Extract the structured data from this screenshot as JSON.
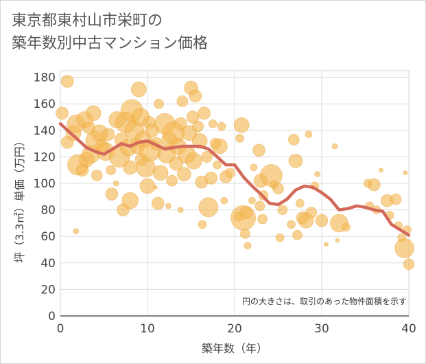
{
  "title_lines": [
    "東京都東村山市栄町の",
    "築年数別中古マンション価格"
  ],
  "chart_data": {
    "type": "scatter",
    "title": "東京都東村山市栄町の築年数別中古マンション価格",
    "xlabel": "築年数（年）",
    "ylabel": "坪（3.3㎡）単価（万円）",
    "xlim": [
      0,
      40
    ],
    "ylim": [
      0,
      185
    ],
    "xticks": [
      0,
      10,
      20,
      30,
      40
    ],
    "yticks": [
      0,
      20,
      40,
      60,
      80,
      100,
      120,
      140,
      160,
      180
    ],
    "grid": true,
    "annotation": "円の大きさは、取引のあった物件面積を示す",
    "colors": {
      "bubble": "#f3b650",
      "line": "#d2695a",
      "grid": "#dcdcdc"
    },
    "trend_line": {
      "x": [
        0,
        1,
        2,
        3,
        4,
        5,
        6,
        7,
        8,
        9,
        10,
        11,
        12,
        13,
        14,
        15,
        16,
        17,
        18,
        19,
        20,
        21,
        22,
        23,
        24,
        25,
        26,
        27,
        28,
        29,
        30,
        31,
        32,
        33,
        34,
        35,
        36,
        37,
        38,
        39,
        40
      ],
      "y": [
        145,
        139,
        133,
        127,
        124,
        122,
        126,
        130,
        128,
        131,
        132,
        129,
        126,
        127,
        128,
        128,
        128,
        126,
        120,
        114,
        114,
        105,
        98,
        92,
        85,
        84,
        88,
        95,
        98,
        97,
        93,
        88,
        80,
        81,
        83,
        82,
        80,
        79,
        69,
        65,
        61
      ]
    },
    "bubbles": [
      {
        "x": 0.2,
        "y": 153,
        "s": 9
      },
      {
        "x": 0.8,
        "y": 177,
        "s": 9
      },
      {
        "x": 0.8,
        "y": 131,
        "s": 9
      },
      {
        "x": 1.5,
        "y": 138,
        "s": 11
      },
      {
        "x": 1.8,
        "y": 145,
        "s": 13
      },
      {
        "x": 2.0,
        "y": 114,
        "s": 15
      },
      {
        "x": 2.8,
        "y": 148,
        "s": 12
      },
      {
        "x": 2.5,
        "y": 110,
        "s": 9
      },
      {
        "x": 3.0,
        "y": 118,
        "s": 11
      },
      {
        "x": 3.3,
        "y": 142,
        "s": 9
      },
      {
        "x": 3.8,
        "y": 153,
        "s": 11
      },
      {
        "x": 3.5,
        "y": 122,
        "s": 13
      },
      {
        "x": 4.0,
        "y": 132,
        "s": 14
      },
      {
        "x": 4.5,
        "y": 138,
        "s": 12
      },
      {
        "x": 4.2,
        "y": 106,
        "s": 8
      },
      {
        "x": 4.8,
        "y": 128,
        "s": 10
      },
      {
        "x": 5.2,
        "y": 124,
        "s": 13
      },
      {
        "x": 5.5,
        "y": 137,
        "s": 9
      },
      {
        "x": 5.8,
        "y": 110,
        "s": 7
      },
      {
        "x": 5.9,
        "y": 92,
        "s": 9
      },
      {
        "x": 6.5,
        "y": 148,
        "s": 12
      },
      {
        "x": 6.8,
        "y": 120,
        "s": 15
      },
      {
        "x": 7.0,
        "y": 133,
        "s": 10
      },
      {
        "x": 7.2,
        "y": 80,
        "s": 9
      },
      {
        "x": 7.5,
        "y": 146,
        "s": 15
      },
      {
        "x": 7.8,
        "y": 127,
        "s": 12
      },
      {
        "x": 8.0,
        "y": 112,
        "s": 10
      },
      {
        "x": 8.2,
        "y": 155,
        "s": 16
      },
      {
        "x": 8.0,
        "y": 87,
        "s": 12
      },
      {
        "x": 8.5,
        "y": 140,
        "s": 14
      },
      {
        "x": 8.8,
        "y": 128,
        "s": 11
      },
      {
        "x": 9.0,
        "y": 171,
        "s": 11
      },
      {
        "x": 9.2,
        "y": 150,
        "s": 13
      },
      {
        "x": 9.3,
        "y": 118,
        "s": 9
      },
      {
        "x": 9.5,
        "y": 133,
        "s": 12
      },
      {
        "x": 9.8,
        "y": 112,
        "s": 14
      },
      {
        "x": 10.0,
        "y": 98,
        "s": 11
      },
      {
        "x": 10.2,
        "y": 146,
        "s": 9
      },
      {
        "x": 10.3,
        "y": 125,
        "s": 16
      },
      {
        "x": 10.5,
        "y": 140,
        "s": 10
      },
      {
        "x": 11.0,
        "y": 130,
        "s": 9
      },
      {
        "x": 11.2,
        "y": 85,
        "s": 9
      },
      {
        "x": 11.3,
        "y": 160,
        "s": 7
      },
      {
        "x": 11.5,
        "y": 108,
        "s": 11
      },
      {
        "x": 12.0,
        "y": 145,
        "s": 15
      },
      {
        "x": 12.2,
        "y": 122,
        "s": 13
      },
      {
        "x": 12.5,
        "y": 133,
        "s": 11
      },
      {
        "x": 12.8,
        "y": 102,
        "s": 8
      },
      {
        "x": 13.0,
        "y": 138,
        "s": 16
      },
      {
        "x": 13.3,
        "y": 115,
        "s": 10
      },
      {
        "x": 13.5,
        "y": 128,
        "s": 12
      },
      {
        "x": 13.8,
        "y": 145,
        "s": 9
      },
      {
        "x": 14.0,
        "y": 162,
        "s": 8
      },
      {
        "x": 14.2,
        "y": 107,
        "s": 10
      },
      {
        "x": 14.5,
        "y": 122,
        "s": 13
      },
      {
        "x": 14.8,
        "y": 138,
        "s": 11
      },
      {
        "x": 15.0,
        "y": 172,
        "s": 10
      },
      {
        "x": 15.2,
        "y": 150,
        "s": 9
      },
      {
        "x": 15.3,
        "y": 117,
        "s": 12
      },
      {
        "x": 15.5,
        "y": 166,
        "s": 9
      },
      {
        "x": 15.8,
        "y": 143,
        "s": 8
      },
      {
        "x": 16.0,
        "y": 132,
        "s": 11
      },
      {
        "x": 16.2,
        "y": 101,
        "s": 9
      },
      {
        "x": 16.3,
        "y": 69,
        "s": 6
      },
      {
        "x": 16.5,
        "y": 153,
        "s": 9
      },
      {
        "x": 16.8,
        "y": 120,
        "s": 8
      },
      {
        "x": 17.0,
        "y": 82,
        "s": 14
      },
      {
        "x": 17.3,
        "y": 104,
        "s": 9
      },
      {
        "x": 17.5,
        "y": 145,
        "s": 6
      },
      {
        "x": 17.8,
        "y": 130,
        "s": 8
      },
      {
        "x": 18.0,
        "y": 114,
        "s": 6
      },
      {
        "x": 18.3,
        "y": 128,
        "s": 11
      },
      {
        "x": 18.5,
        "y": 143,
        "s": 6
      },
      {
        "x": 18.8,
        "y": 87,
        "s": 5
      },
      {
        "x": 19.0,
        "y": 105,
        "s": 9
      },
      {
        "x": 19.5,
        "y": 108,
        "s": 7
      },
      {
        "x": 20.5,
        "y": 75,
        "s": 7
      },
      {
        "x": 20.6,
        "y": 134,
        "s": 6
      },
      {
        "x": 20.8,
        "y": 144,
        "s": 11
      },
      {
        "x": 21.0,
        "y": 74,
        "s": 18
      },
      {
        "x": 21.2,
        "y": 62,
        "s": 7
      },
      {
        "x": 21.3,
        "y": 78,
        "s": 9
      },
      {
        "x": 21.5,
        "y": 53,
        "s": 5
      },
      {
        "x": 22.0,
        "y": 87,
        "s": 5
      },
      {
        "x": 22.2,
        "y": 112,
        "s": 5
      },
      {
        "x": 22.8,
        "y": 125,
        "s": 9
      },
      {
        "x": 22.9,
        "y": 83,
        "s": 7
      },
      {
        "x": 23.0,
        "y": 102,
        "s": 10
      },
      {
        "x": 23.2,
        "y": 73,
        "s": 7
      },
      {
        "x": 23.3,
        "y": 91,
        "s": 7
      },
      {
        "x": 24.2,
        "y": 106,
        "s": 16
      },
      {
        "x": 24.5,
        "y": 99,
        "s": 6
      },
      {
        "x": 25.0,
        "y": 96,
        "s": 8
      },
      {
        "x": 25.2,
        "y": 59,
        "s": 6
      },
      {
        "x": 25.5,
        "y": 80,
        "s": 7
      },
      {
        "x": 26.5,
        "y": 69,
        "s": 6
      },
      {
        "x": 26.8,
        "y": 133,
        "s": 8
      },
      {
        "x": 27.0,
        "y": 117,
        "s": 10
      },
      {
        "x": 27.2,
        "y": 61,
        "s": 7
      },
      {
        "x": 27.5,
        "y": 85,
        "s": 6
      },
      {
        "x": 27.8,
        "y": 74,
        "s": 9
      },
      {
        "x": 28.2,
        "y": 72,
        "s": 11
      },
      {
        "x": 28.5,
        "y": 137,
        "s": 5
      },
      {
        "x": 28.8,
        "y": 78,
        "s": 8
      },
      {
        "x": 29.2,
        "y": 98,
        "s": 6
      },
      {
        "x": 29.5,
        "y": 107,
        "s": 4
      },
      {
        "x": 30.0,
        "y": 72,
        "s": 9
      },
      {
        "x": 30.5,
        "y": 54,
        "s": 3
      },
      {
        "x": 31.5,
        "y": 128,
        "s": 4
      },
      {
        "x": 31.8,
        "y": 57,
        "s": 3
      },
      {
        "x": 32.0,
        "y": 70,
        "s": 13
      },
      {
        "x": 32.8,
        "y": 67,
        "s": 6
      },
      {
        "x": 35.3,
        "y": 100,
        "s": 6
      },
      {
        "x": 35.5,
        "y": 83,
        "s": 6
      },
      {
        "x": 36.0,
        "y": 99,
        "s": 9
      },
      {
        "x": 36.3,
        "y": 80,
        "s": 6
      },
      {
        "x": 36.8,
        "y": 110,
        "s": 3
      },
      {
        "x": 37.5,
        "y": 87,
        "s": 9
      },
      {
        "x": 37.8,
        "y": 76,
        "s": 6
      },
      {
        "x": 38.5,
        "y": 88,
        "s": 8
      },
      {
        "x": 38.8,
        "y": 68,
        "s": 6
      },
      {
        "x": 39.2,
        "y": 59,
        "s": 6
      },
      {
        "x": 39.5,
        "y": 51,
        "s": 14
      },
      {
        "x": 39.8,
        "y": 65,
        "s": 6
      },
      {
        "x": 39.6,
        "y": 108,
        "s": 3
      },
      {
        "x": 40.0,
        "y": 39,
        "s": 8
      },
      {
        "x": 1.8,
        "y": 64,
        "s": 4
      },
      {
        "x": 13.8,
        "y": 80,
        "s": 4
      },
      {
        "x": 12.4,
        "y": 83,
        "s": 4
      },
      {
        "x": 6.4,
        "y": 100,
        "s": 4
      },
      {
        "x": 10.9,
        "y": 97,
        "s": 3
      }
    ]
  }
}
